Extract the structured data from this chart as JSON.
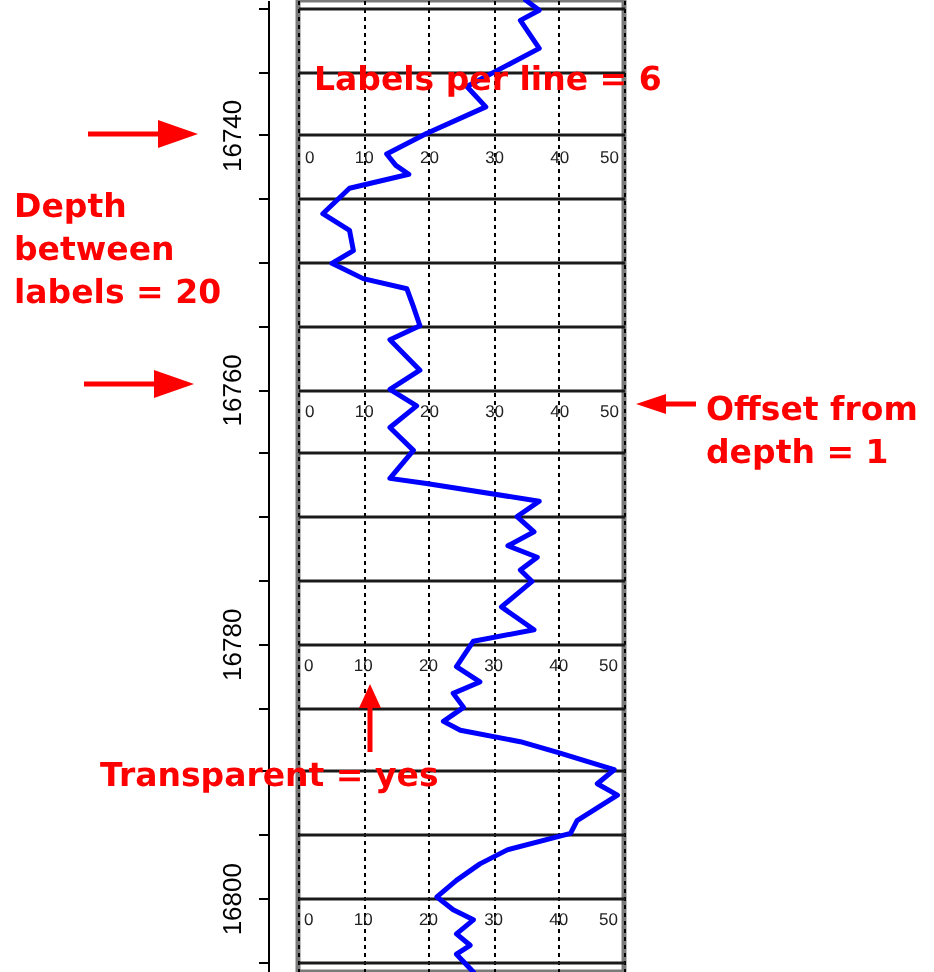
{
  "chart_data": {
    "type": "line",
    "color": "#0000ff",
    "x": [
      34.9,
      37.0,
      34.1,
      37.0,
      25.9,
      28.8,
      19.7,
      13.6,
      15.0,
      17.0,
      7.9,
      3.8,
      7.9,
      8.5,
      5.2,
      10.0,
      16.7,
      17.7,
      18.7,
      14.1,
      18.7,
      14.1,
      18.2,
      14.1,
      17.7,
      14.1,
      19.7,
      37.0,
      33.6,
      36.2,
      32.2,
      36.7,
      34.1,
      35.9,
      31.2,
      36.2,
      26.9,
      24.3,
      27.9,
      23.8,
      25.4,
      22.3,
      24.9,
      34.1,
      40.2,
      48.5,
      45.9,
      49.0,
      42.8,
      41.8,
      32.1,
      27.9,
      24.3,
      21.3,
      23.8,
      26.9,
      24.3,
      26.4,
      24.3,
      26.9
    ],
    "values": [
      16729.4,
      16730.2,
      16731.0,
      16733.2,
      16736.2,
      16737.8,
      16739.9,
      16741.5,
      16742.4,
      16743.1,
      16744.2,
      16746.2,
      16747.5,
      16749.1,
      16750.1,
      16751.3,
      16752.1,
      16753.5,
      16755.0,
      16756.1,
      16758.5,
      16760.0,
      16761.3,
      16763.0,
      16764.8,
      16767.0,
      16767.4,
      16768.8,
      16770.0,
      16771.2,
      16772.3,
      16773.2,
      16774.2,
      16775.1,
      16777.1,
      16778.9,
      16779.8,
      16781.8,
      16783.0,
      16783.9,
      16785.0,
      16786.1,
      16786.8,
      16787.7,
      16788.6,
      16789.9,
      16791.0,
      16791.9,
      16793.9,
      16794.9,
      16796.2,
      16797.3,
      16798.6,
      16799.9,
      16800.9,
      16801.7,
      16802.8,
      16803.7,
      16804.4,
      16805.8
    ],
    "xlim": [
      0,
      50
    ],
    "xticks": [
      0,
      10,
      20,
      30,
      40,
      50
    ],
    "x2lim": [
      0,
      50
    ],
    "x2ticks": [
      0,
      10,
      20,
      30,
      40,
      50
    ],
    "ylim": [
      16805.8,
      16729.4
    ],
    "yticks": [
      {
        "value": 16730,
        "label": null
      },
      {
        "value": 16735,
        "label": null
      },
      16740,
      {
        "value": 16745,
        "label": null
      },
      {
        "value": 16750,
        "label": null
      },
      {
        "value": 16755,
        "label": null
      },
      16760,
      {
        "value": 16765,
        "label": null
      },
      {
        "value": 16770,
        "label": null
      },
      {
        "value": 16775,
        "label": null
      },
      16780,
      {
        "value": 16785,
        "label": null
      },
      {
        "value": 16790,
        "label": null
      },
      {
        "value": 16795,
        "label": null
      },
      16800,
      {
        "value": 16805,
        "label": null
      }
    ],
    "grid": true,
    "annotations": [
      "Labels per line = 6",
      "Depth between labels = 20",
      "Offset from depth = 1",
      "Transparent = yes",
      "0",
      "10",
      "20",
      "30",
      "40",
      "50",
      "0",
      "10",
      "20",
      "30",
      "40",
      "50"
    ]
  }
}
